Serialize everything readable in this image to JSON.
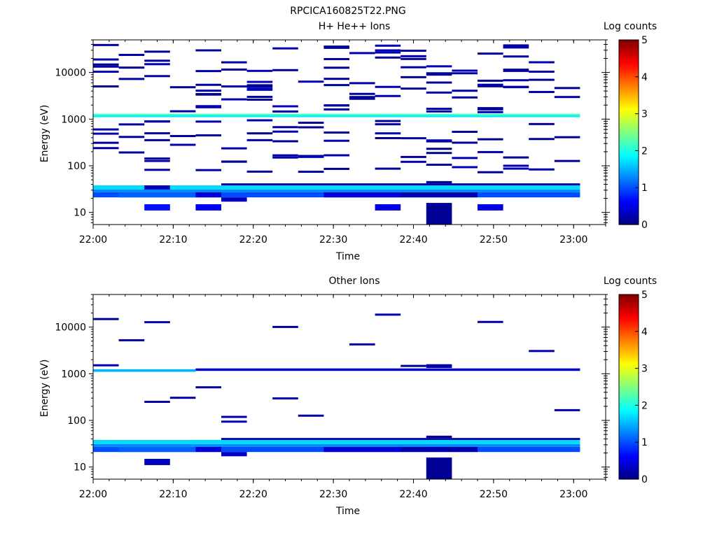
{
  "figure_title": "RPCICA160825T22.PNG",
  "chart_data": [
    {
      "type": "heatmap",
      "title": "H+ He++ Ions",
      "xlabel": "Time",
      "ylabel": "Energy (eV)",
      "colorbar_label": "Log counts",
      "colorbar_ticks": [
        "0",
        "1",
        "2",
        "3",
        "4",
        "5"
      ],
      "colorbar_range": [
        0,
        5
      ],
      "colormap": "jet",
      "xlim": [
        "22:00",
        "23:04"
      ],
      "x_ticks": [
        "22:00",
        "22:10",
        "22:20",
        "22:30",
        "22:40",
        "22:50",
        "23:00"
      ],
      "ylim": [
        5.5,
        50000
      ],
      "yscale": "log",
      "y_ticks": [
        "10",
        "100",
        "1000",
        "10000"
      ],
      "time_bins_min": [
        0,
        3.2,
        6.4,
        9.6,
        12.8,
        16,
        19.2,
        22.4,
        25.6,
        28.8,
        32,
        35.2,
        38.4,
        41.6,
        44.8,
        48,
        51.2,
        54.4,
        57.6,
        60.8
      ],
      "cells": [
        {
          "t0": 0,
          "t1": 60.8,
          "e0": 21,
          "e1": 27,
          "v": 1.0
        },
        {
          "t0": 0,
          "t1": 60.8,
          "e0": 27,
          "e1": 31,
          "v": 1.3
        },
        {
          "t0": 0,
          "t1": 60.8,
          "e0": 31,
          "e1": 38,
          "v": 1.7
        },
        {
          "t0": 3.2,
          "t1": 12.8,
          "e0": 21,
          "e1": 27,
          "v": 1.1
        },
        {
          "t0": 12.8,
          "t1": 16,
          "e0": 21,
          "e1": 27,
          "v": 0.4
        },
        {
          "t0": 16,
          "t1": 19.2,
          "e0": 17,
          "e1": 21,
          "v": 0.3
        },
        {
          "t0": 16,
          "t1": 60.8,
          "e0": 38,
          "e1": 42,
          "v": 0.2
        },
        {
          "t0": 28.8,
          "t1": 38.4,
          "e0": 21,
          "e1": 27,
          "v": 0.4
        },
        {
          "t0": 38.4,
          "t1": 48,
          "e0": 21,
          "e1": 27,
          "v": 0.2
        },
        {
          "t0": 41.6,
          "t1": 44.8,
          "e0": 42,
          "e1": 47,
          "v": 0.1
        },
        {
          "t0": 6.4,
          "t1": 9.6,
          "e0": 31,
          "e1": 38,
          "v": 0.3
        },
        {
          "t0": 0,
          "t1": 60.8,
          "e0": 1100,
          "e1": 1200,
          "v": 1.8
        },
        {
          "t0": 0,
          "t1": 60.8,
          "e0": 1200,
          "e1": 1300,
          "v": 2.2
        },
        {
          "t0": 6.4,
          "t1": 9.6,
          "e0": 11,
          "e1": 15,
          "v": 0.7
        },
        {
          "t0": 12.8,
          "t1": 16,
          "e0": 11,
          "e1": 15,
          "v": 0.6
        },
        {
          "t0": 35.2,
          "t1": 38.4,
          "e0": 11,
          "e1": 15,
          "v": 0.5
        },
        {
          "t0": 48,
          "t1": 51.2,
          "e0": 11,
          "e1": 15,
          "v": 0.5
        },
        {
          "t0": 41.6,
          "t1": 44.8,
          "e0": 5.5,
          "e1": 16,
          "v": 0.1
        }
      ]
    },
    {
      "type": "heatmap",
      "title": "Other Ions",
      "xlabel": "Time",
      "ylabel": "Energy (eV)",
      "colorbar_label": "Log counts",
      "colorbar_ticks": [
        "0",
        "1",
        "2",
        "3",
        "4",
        "5"
      ],
      "colorbar_range": [
        0,
        5
      ],
      "colormap": "jet",
      "xlim": [
        "22:00",
        "23:04"
      ],
      "x_ticks": [
        "22:00",
        "22:10",
        "22:20",
        "22:30",
        "22:40",
        "22:50",
        "23:00"
      ],
      "ylim": [
        5.5,
        50000
      ],
      "yscale": "log",
      "y_ticks": [
        "10",
        "100",
        "1000",
        "10000"
      ],
      "time_bins_min": [
        0,
        3.2,
        6.4,
        9.6,
        12.8,
        16,
        19.2,
        22.4,
        25.6,
        28.8,
        32,
        35.2,
        38.4,
        41.6,
        44.8,
        48,
        51.2,
        54.4,
        57.6,
        60.8
      ],
      "cells": [
        {
          "t0": 0,
          "t1": 60.8,
          "e0": 21,
          "e1": 27,
          "v": 1.0
        },
        {
          "t0": 0,
          "t1": 60.8,
          "e0": 27,
          "e1": 31,
          "v": 1.3
        },
        {
          "t0": 0,
          "t1": 60.8,
          "e0": 31,
          "e1": 38,
          "v": 1.7
        },
        {
          "t0": 3.2,
          "t1": 12.8,
          "e0": 21,
          "e1": 27,
          "v": 1.1
        },
        {
          "t0": 12.8,
          "t1": 16,
          "e0": 21,
          "e1": 27,
          "v": 0.4
        },
        {
          "t0": 16,
          "t1": 19.2,
          "e0": 17,
          "e1": 21,
          "v": 0.3
        },
        {
          "t0": 16,
          "t1": 60.8,
          "e0": 38,
          "e1": 42,
          "v": 0.2
        },
        {
          "t0": 28.8,
          "t1": 38.4,
          "e0": 21,
          "e1": 27,
          "v": 0.4
        },
        {
          "t0": 38.4,
          "t1": 48,
          "e0": 21,
          "e1": 27,
          "v": 0.2
        },
        {
          "t0": 41.6,
          "t1": 44.8,
          "e0": 42,
          "e1": 47,
          "v": 0.1
        },
        {
          "t0": 0,
          "t1": 12.8,
          "e0": 1100,
          "e1": 1250,
          "v": 1.5
        },
        {
          "t0": 12.8,
          "t1": 60.8,
          "e0": 1150,
          "e1": 1300,
          "v": 0.4
        },
        {
          "t0": 6.4,
          "t1": 9.6,
          "e0": 11,
          "e1": 15,
          "v": 0.3
        },
        {
          "t0": 41.6,
          "t1": 44.8,
          "e0": 5.5,
          "e1": 16,
          "v": 0.1
        }
      ]
    }
  ],
  "colors": {
    "axis": "#000000",
    "background": "#ffffff"
  }
}
